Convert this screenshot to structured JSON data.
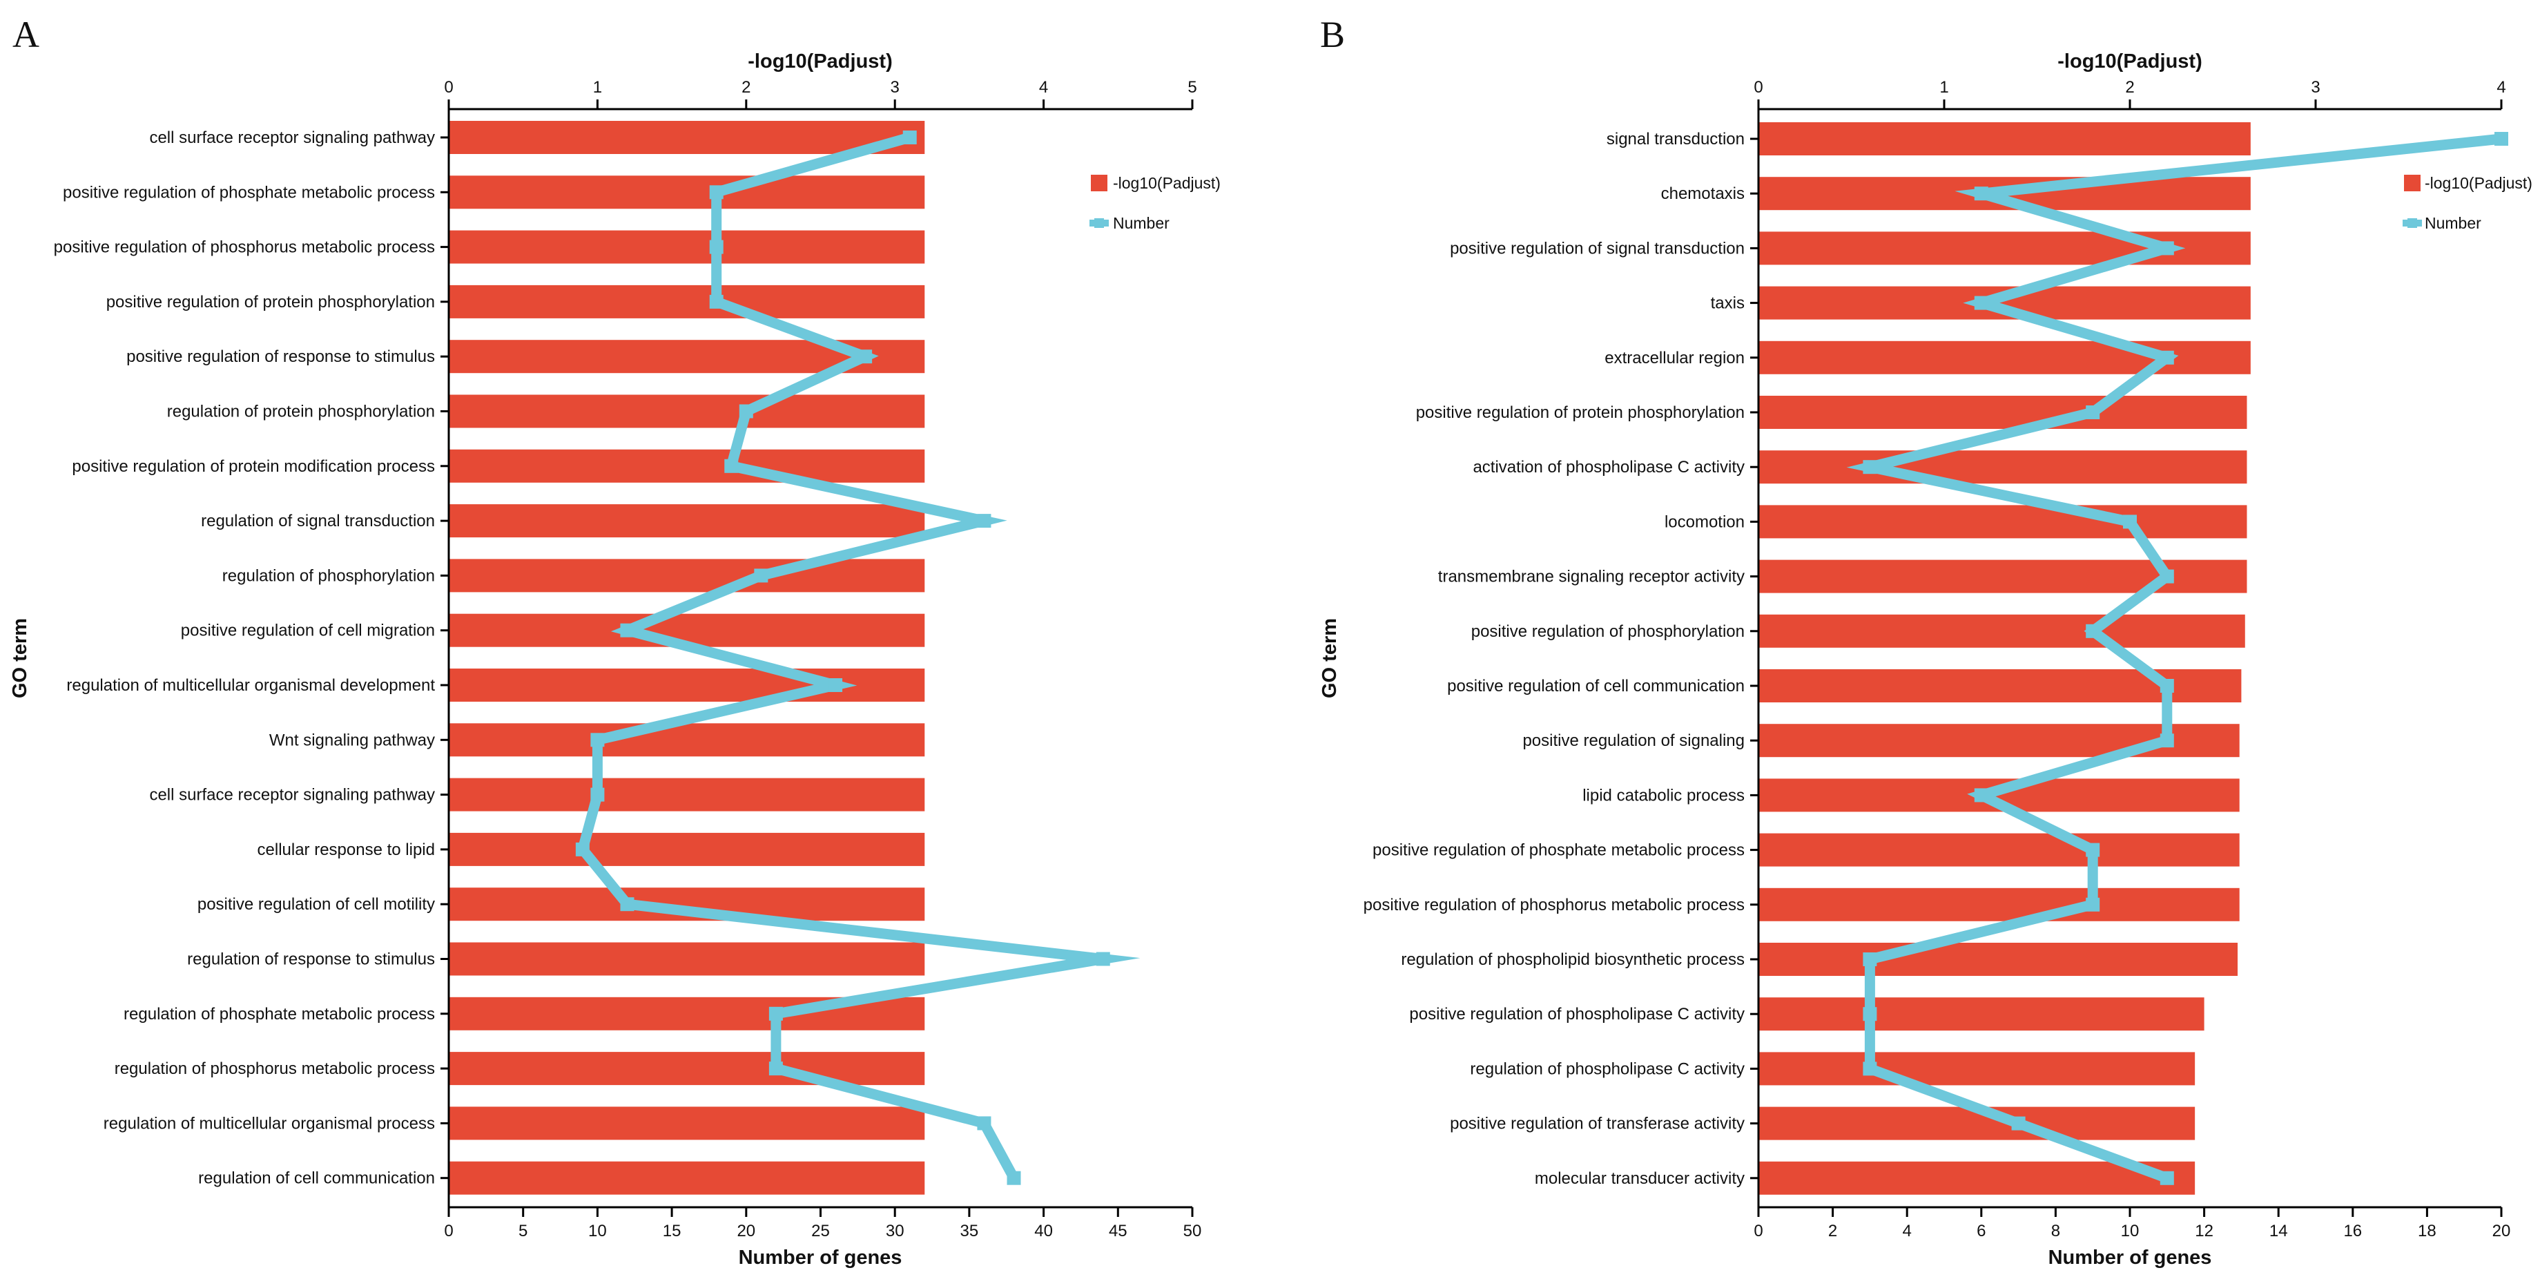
{
  "chart_data": [
    {
      "panel": "A",
      "type": "bar",
      "colors": {
        "bar": "#e64a35",
        "line": "#6ec8db"
      },
      "y_axis_title": "GO term",
      "top_axis": {
        "label": "-log10(Padjust)",
        "range": [
          0,
          5
        ],
        "ticks": [
          0,
          1,
          2,
          3,
          4,
          5
        ]
      },
      "bottom_axis": {
        "label": "Number of genes",
        "range": [
          0,
          50
        ],
        "ticks": [
          0,
          5,
          10,
          15,
          20,
          25,
          30,
          35,
          40,
          45,
          50
        ]
      },
      "legend": {
        "placement": "top-right",
        "entries": [
          {
            "label": "-log10(Padjust)",
            "marker": "bar"
          },
          {
            "label": "Number",
            "marker": "line"
          }
        ]
      },
      "categories": [
        "cell surface receptor signaling pathway",
        "positive regulation of phosphate metabolic process",
        "positive regulation of phosphorus metabolic process",
        "positive regulation of protein phosphorylation",
        "positive regulation of response to stimulus",
        "regulation of protein phosphorylation",
        "positive regulation of protein modification process",
        "regulation of signal transduction",
        "regulation of phosphorylation",
        "positive regulation of cell migration",
        "regulation of multicellular organismal development",
        "Wnt signaling pathway",
        "cell surface receptor signaling pathway",
        "cellular response to lipid",
        "positive regulation of cell motility",
        "regulation of response to stimulus",
        "regulation of phosphate metabolic process",
        "regulation of phosphorus metabolic process",
        "regulation of multicellular organismal process",
        "regulation of cell communication"
      ],
      "series": [
        {
          "name": "-log10(Padjust)",
          "kind": "bar",
          "values": [
            3.2,
            3.2,
            3.2,
            3.2,
            3.2,
            3.2,
            3.2,
            3.2,
            3.2,
            3.2,
            3.2,
            3.2,
            3.2,
            3.2,
            3.2,
            3.2,
            3.2,
            3.2,
            3.2,
            3.2
          ]
        },
        {
          "name": "Number",
          "kind": "line",
          "values": [
            31,
            18,
            18,
            18,
            28,
            20,
            19,
            36,
            21,
            12,
            26,
            10,
            10,
            9,
            12,
            44,
            22,
            22,
            36,
            38
          ]
        }
      ]
    },
    {
      "panel": "B",
      "type": "bar",
      "colors": {
        "bar": "#e64a35",
        "line": "#6ec8db"
      },
      "y_axis_title": "GO term",
      "top_axis": {
        "label": "-log10(Padjust)",
        "range": [
          0,
          4
        ],
        "ticks": [
          0,
          1,
          2,
          3,
          4
        ]
      },
      "bottom_axis": {
        "label": "Number of genes",
        "range": [
          0,
          20
        ],
        "ticks": [
          0,
          2,
          4,
          6,
          8,
          10,
          12,
          14,
          16,
          18,
          20
        ]
      },
      "legend": {
        "placement": "top-right",
        "entries": [
          {
            "label": "-log10(Padjust)",
            "marker": "bar"
          },
          {
            "label": "Number",
            "marker": "line"
          }
        ]
      },
      "categories": [
        "signal transduction",
        "chemotaxis",
        "positive regulation of signal transduction",
        "taxis",
        "extracellular region",
        "positive regulation of protein phosphorylation",
        "activation of phospholipase C activity",
        "locomotion",
        "transmembrane signaling receptor activity",
        "positive regulation of phosphorylation",
        "positive regulation of cell communication",
        "positive regulation of signaling",
        "lipid catabolic process",
        "positive regulation of phosphate metabolic process",
        "positive regulation of phosphorus metabolic process",
        "regulation of phospholipid biosynthetic process",
        "positive regulation of phospholipase C activity",
        "regulation of phospholipase C activity",
        "positive regulation of transferase activity",
        "molecular transducer activity"
      ],
      "series": [
        {
          "name": "-log10(Padjust)",
          "kind": "bar",
          "values": [
            2.65,
            2.65,
            2.65,
            2.65,
            2.65,
            2.63,
            2.63,
            2.63,
            2.63,
            2.62,
            2.6,
            2.59,
            2.59,
            2.59,
            2.59,
            2.58,
            2.4,
            2.35,
            2.35,
            2.35
          ]
        },
        {
          "name": "Number",
          "kind": "line",
          "values": [
            20,
            6,
            11,
            6,
            11,
            9,
            3,
            10,
            11,
            9,
            11,
            11,
            6,
            9,
            9,
            3,
            3,
            3,
            7,
            11
          ]
        }
      ]
    }
  ]
}
